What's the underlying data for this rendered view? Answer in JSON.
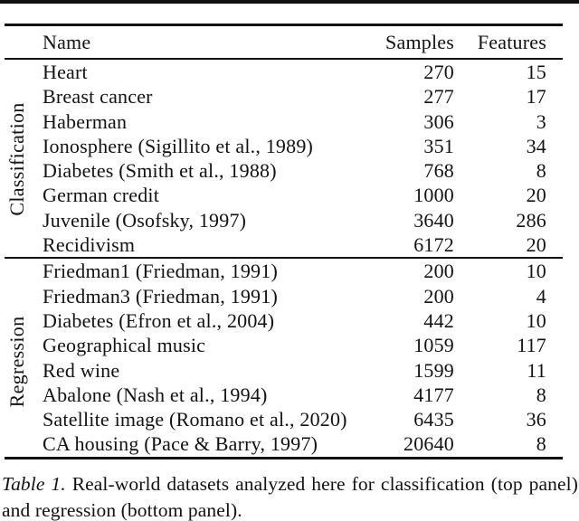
{
  "table": {
    "columns": [
      "Name",
      "Samples",
      "Features"
    ],
    "sections": [
      {
        "label": "Classification",
        "rows": [
          [
            "Heart",
            "270",
            "15"
          ],
          [
            "Breast cancer",
            "277",
            "17"
          ],
          [
            "Haberman",
            "306",
            "3"
          ],
          [
            "Ionosphere (Sigillito et al., 1989)",
            "351",
            "34"
          ],
          [
            "Diabetes (Smith et al., 1988)",
            "768",
            "8"
          ],
          [
            "German credit",
            "1000",
            "20"
          ],
          [
            "Juvenile (Osofsky, 1997)",
            "3640",
            "286"
          ],
          [
            "Recidivism",
            "6172",
            "20"
          ]
        ]
      },
      {
        "label": "Regression",
        "rows": [
          [
            "Friedman1 (Friedman, 1991)",
            "200",
            "10"
          ],
          [
            "Friedman3 (Friedman, 1991)",
            "200",
            "4"
          ],
          [
            "Diabetes (Efron et al., 2004)",
            "442",
            "10"
          ],
          [
            "Geographical music",
            "1059",
            "117"
          ],
          [
            "Red wine",
            "1599",
            "11"
          ],
          [
            "Abalone (Nash et al., 1994)",
            "4177",
            "8"
          ],
          [
            "Satellite image (Romano et al., 2020)",
            "6435",
            "36"
          ],
          [
            "CA housing (Pace & Barry, 1997)",
            "20640",
            "8"
          ]
        ]
      }
    ]
  },
  "caption": {
    "label": "Table 1.",
    "text": "Real-world datasets analyzed here for classification (top panel) and regression (bottom panel)."
  }
}
